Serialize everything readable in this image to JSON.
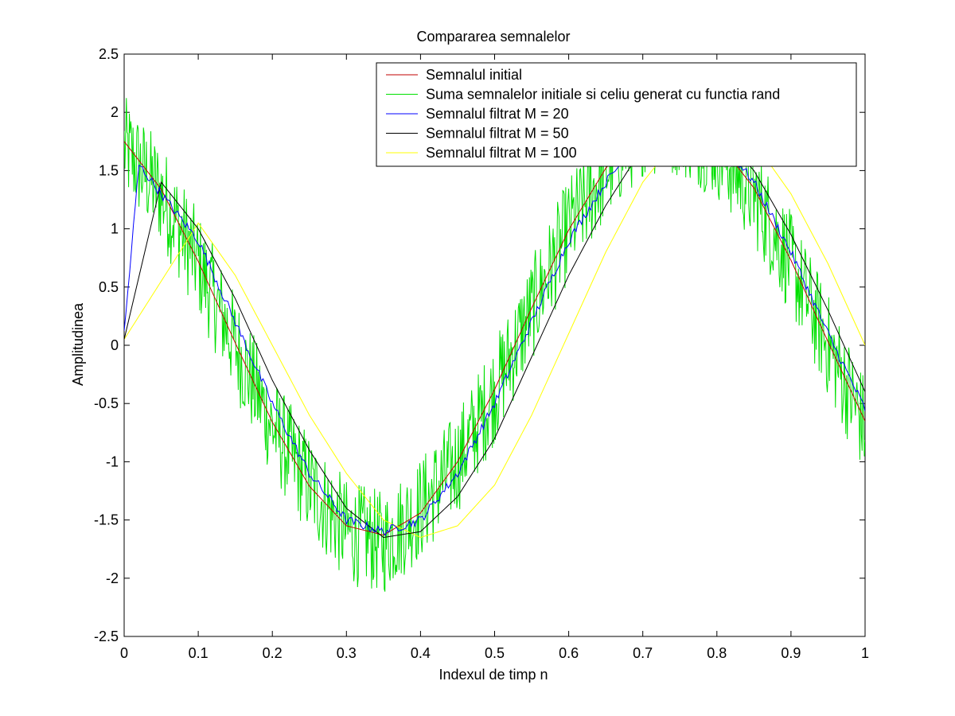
{
  "chart_data": {
    "type": "line",
    "title": "Compararea semnalelor",
    "xlabel": "Indexul de timp n",
    "ylabel": "Amplitudinea",
    "xlim": [
      0,
      1
    ],
    "ylim": [
      -2.5,
      2.5
    ],
    "xticks": [
      "0",
      "0.1",
      "0.2",
      "0.3",
      "0.4",
      "0.5",
      "0.6",
      "0.7",
      "0.8",
      "0.9",
      "1"
    ],
    "yticks": [
      "2.5",
      "2",
      "1.5",
      "1",
      "0.5",
      "0",
      "-0.5",
      "-1",
      "-1.5",
      "-2",
      "-2.5"
    ],
    "grid": false,
    "legend_position": "top-right",
    "series": [
      {
        "name": "Semnalul initial",
        "color": "#c00000",
        "x": [
          0,
          0.05,
          0.1,
          0.15,
          0.2,
          0.25,
          0.3,
          0.35,
          0.4,
          0.45,
          0.5,
          0.55,
          0.6,
          0.65,
          0.7,
          0.75,
          0.8,
          0.85,
          0.9,
          0.95,
          1.0
        ],
        "y": [
          1.75,
          1.34,
          0.72,
          0.02,
          -0.66,
          -1.21,
          -1.55,
          -1.63,
          -1.44,
          -1.0,
          -0.38,
          0.32,
          0.99,
          1.52,
          1.87,
          1.95,
          1.76,
          1.35,
          0.73,
          0.03,
          -0.65
        ]
      },
      {
        "name": "Suma semnalelor initiale si celiu generat cu functia rand",
        "color": "#00e000",
        "x": [
          0,
          0.05,
          0.1,
          0.15,
          0.2,
          0.25,
          0.3,
          0.35,
          0.4,
          0.45,
          0.5,
          0.55,
          0.6,
          0.65,
          0.7,
          0.75,
          0.8,
          0.85,
          0.9,
          0.95,
          1.0
        ],
        "y": [
          1.7,
          1.3,
          0.7,
          0.0,
          -0.7,
          -1.2,
          -1.6,
          -1.7,
          -1.4,
          -1.0,
          -0.4,
          0.3,
          1.0,
          1.5,
          1.9,
          1.9,
          1.7,
          1.3,
          0.7,
          0.0,
          -0.7
        ],
        "noise_amplitude": 0.45
      },
      {
        "name": "Semnalul filtrat M = 20",
        "color": "#0000ff",
        "x": [
          0,
          0.02,
          0.05,
          0.1,
          0.15,
          0.2,
          0.25,
          0.3,
          0.35,
          0.4,
          0.45,
          0.5,
          0.55,
          0.6,
          0.65,
          0.7,
          0.75,
          0.8,
          0.85,
          0.9,
          0.95,
          1.0
        ],
        "y": [
          0.1,
          1.55,
          1.3,
          0.9,
          0.2,
          -0.5,
          -1.1,
          -1.5,
          -1.6,
          -1.5,
          -1.1,
          -0.5,
          0.2,
          0.9,
          1.4,
          1.8,
          1.9,
          1.8,
          1.4,
          0.8,
          0.1,
          -0.55
        ]
      },
      {
        "name": "Semnalul filtrat M = 50",
        "color": "#000000",
        "x": [
          0,
          0.05,
          0.1,
          0.15,
          0.2,
          0.25,
          0.3,
          0.35,
          0.4,
          0.45,
          0.5,
          0.55,
          0.6,
          0.65,
          0.7,
          0.75,
          0.8,
          0.85,
          0.9,
          0.95,
          1.0
        ],
        "y": [
          0.05,
          1.4,
          1.0,
          0.4,
          -0.3,
          -0.9,
          -1.4,
          -1.65,
          -1.6,
          -1.3,
          -0.8,
          -0.1,
          0.6,
          1.2,
          1.7,
          1.9,
          1.85,
          1.5,
          0.95,
          0.3,
          -0.4
        ]
      },
      {
        "name": "Semnalul filtrat M = 100",
        "color": "#ffff00",
        "x": [
          0,
          0.05,
          0.1,
          0.15,
          0.2,
          0.25,
          0.3,
          0.35,
          0.4,
          0.45,
          0.5,
          0.55,
          0.6,
          0.65,
          0.7,
          0.75,
          0.8,
          0.85,
          0.9,
          0.95,
          1.0
        ],
        "y": [
          0.05,
          0.55,
          1.05,
          0.6,
          0.0,
          -0.6,
          -1.1,
          -1.5,
          -1.65,
          -1.55,
          -1.2,
          -0.6,
          0.1,
          0.8,
          1.4,
          1.8,
          1.95,
          1.75,
          1.3,
          0.7,
          0.0
        ]
      }
    ]
  }
}
